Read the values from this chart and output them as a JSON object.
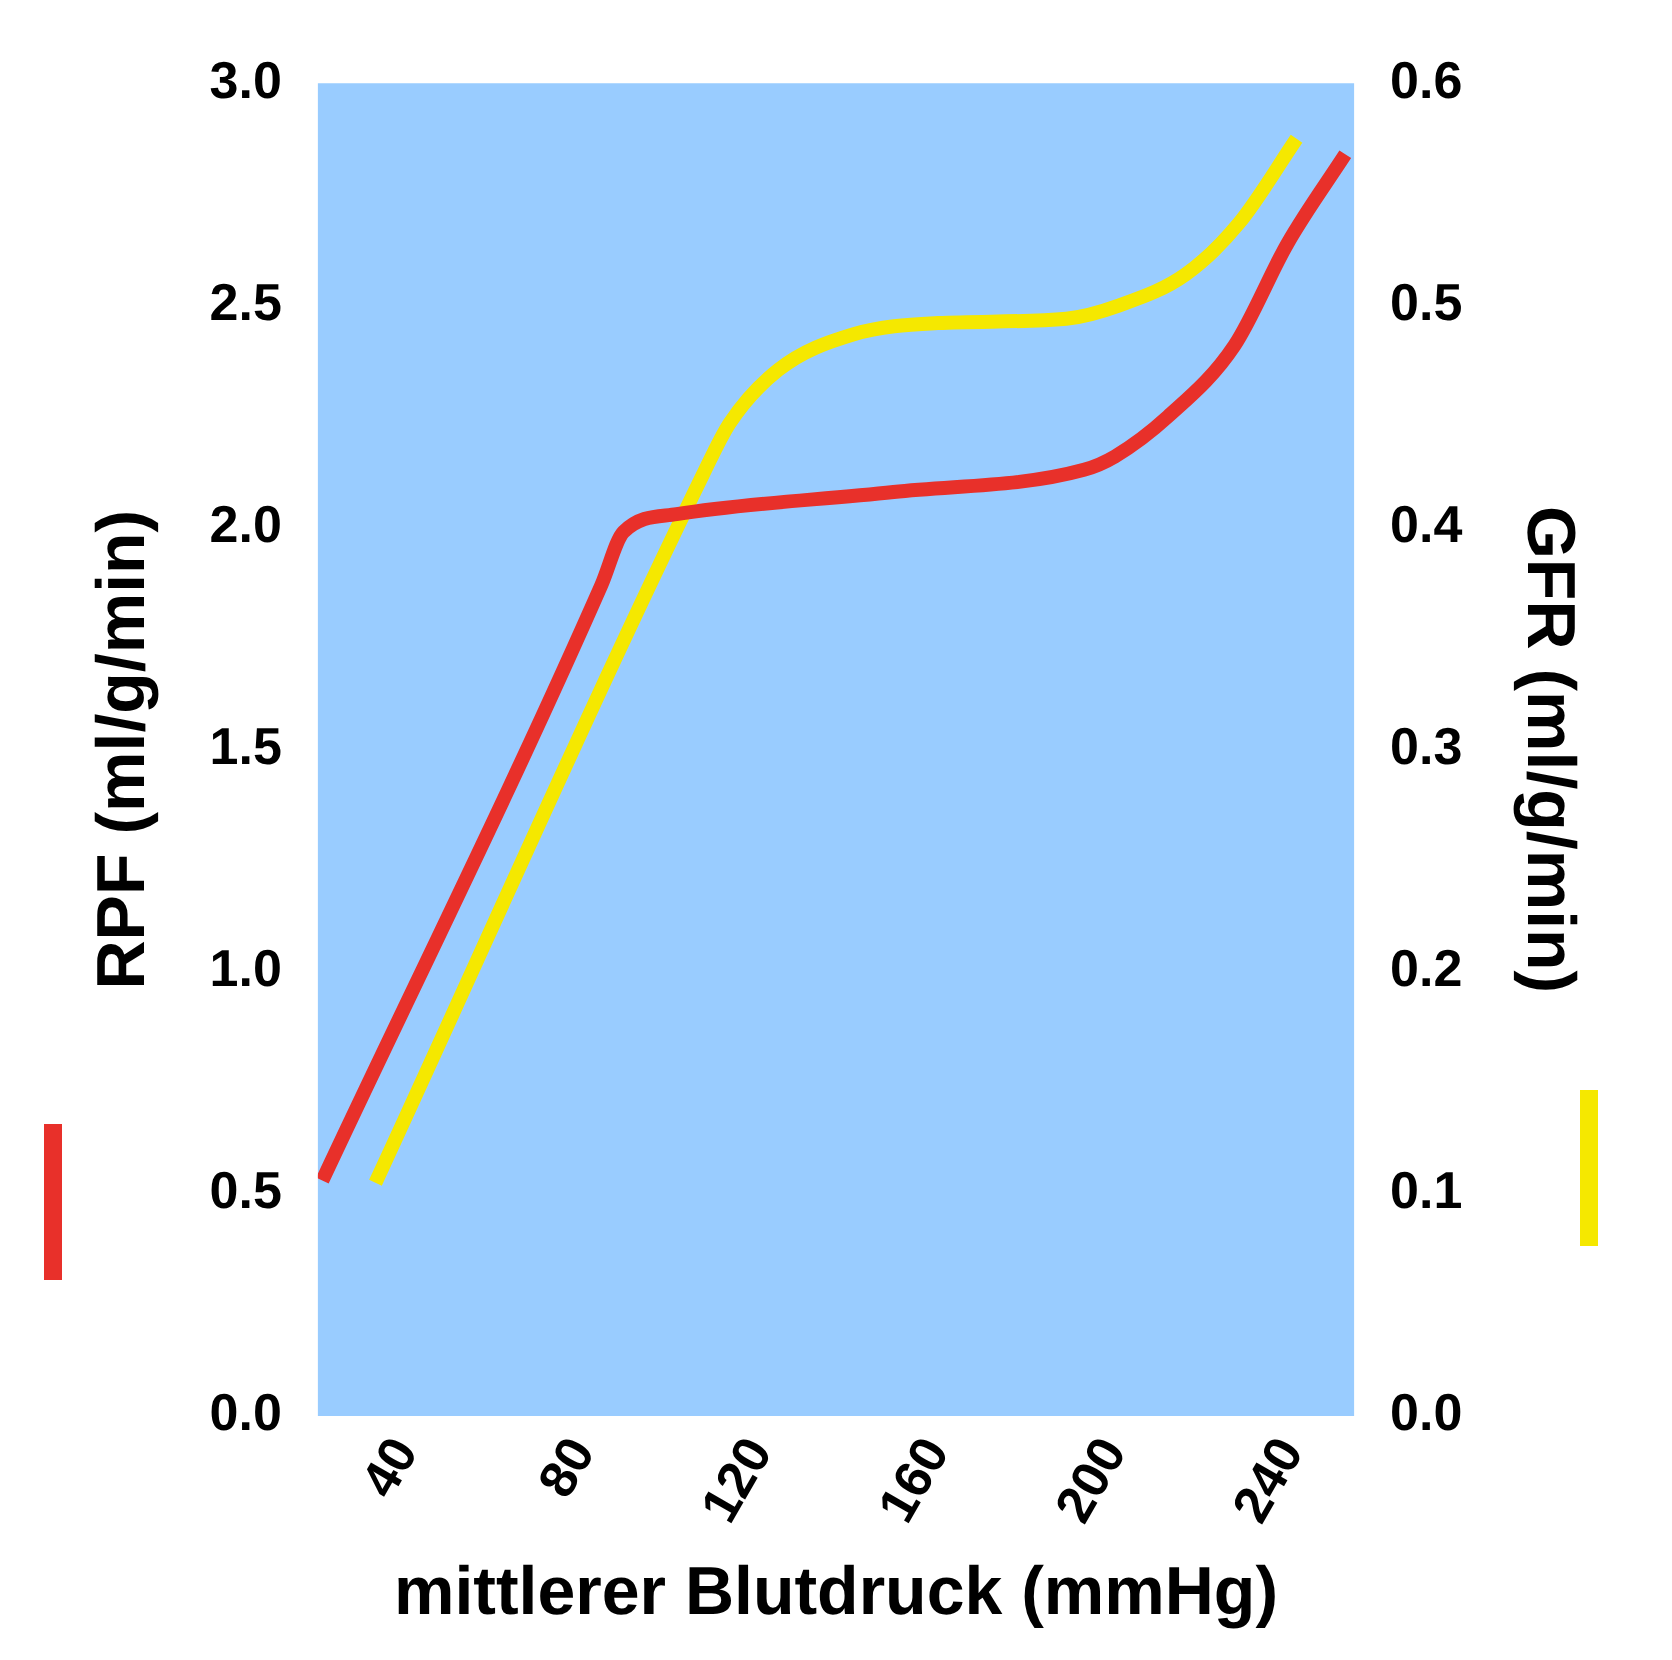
{
  "chart_data": {
    "type": "line",
    "xlabel": "mittlerer Blutdruck (mmHg)",
    "ylabel": "RPF (ml/g/min)",
    "y2label": "GFR (ml/g/min)",
    "xlim": [
      20,
      254
    ],
    "xticks": [
      40,
      80,
      120,
      160,
      200,
      240
    ],
    "ylim": [
      0,
      3
    ],
    "yticks": [
      {
        "value": 0,
        "label": "0.0"
      },
      {
        "value": 0.5,
        "label": "0.5"
      },
      {
        "value": 1,
        "label": "1.0"
      },
      {
        "value": 1.5,
        "label": "1.5"
      },
      {
        "value": 2,
        "label": "2.0"
      },
      {
        "value": 2.5,
        "label": "2.5"
      },
      {
        "value": 3,
        "label": "3.0"
      }
    ],
    "y2lim": [
      0,
      0.6
    ],
    "y2ticks": [
      {
        "value": 0,
        "label": "0.0"
      },
      {
        "value": 0.1,
        "label": "0.1"
      },
      {
        "value": 0.2,
        "label": "0.2"
      },
      {
        "value": 0.3,
        "label": "0.3"
      },
      {
        "value": 0.4,
        "label": "0.4"
      },
      {
        "value": 0.5,
        "label": "0.5"
      },
      {
        "value": 0.6,
        "label": "0.6"
      }
    ],
    "grid": false,
    "legend": false,
    "marker": "none",
    "line_style": "solid",
    "series": [
      {
        "color": "#e8302a",
        "x": [
          21,
          84,
          89,
          101,
          150,
          193,
          200,
          212,
          227,
          239,
          252
        ],
        "values": [
          0.53,
          1.87,
          1.99,
          2.03,
          2.08,
          2.13,
          2.16,
          2.25,
          2.41,
          2.64,
          2.84
        ]
      },
      {
        "color": "#f5e800",
        "axis": "y2",
        "x": [
          33,
          107,
          113,
          124,
          141,
          160,
          189,
          201,
          216,
          228,
          241
        ],
        "values": [
          0.105,
          0.424,
          0.447,
          0.471,
          0.487,
          0.492,
          0.494,
          0.5,
          0.514,
          0.537,
          0.575
        ]
      }
    ]
  }
}
